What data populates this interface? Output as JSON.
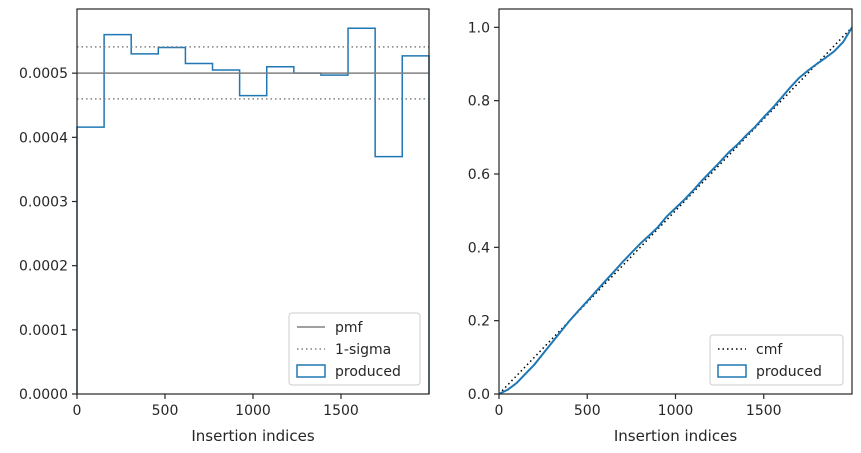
{
  "chart_data": [
    {
      "type": "histogram",
      "xlabel": "Insertion indices",
      "ylabel": "",
      "xlim": [
        0,
        2000
      ],
      "ylim": [
        0,
        0.0006
      ],
      "xticks": [
        0,
        500,
        1000,
        1500
      ],
      "yticks": [
        0,
        0.0001,
        0.0002,
        0.0003,
        0.0004,
        0.0005
      ],
      "ytick_labels": [
        "0.0000",
        "0.0001",
        "0.0002",
        "0.0003",
        "0.0004",
        "0.0005"
      ],
      "xtick_labels": [
        "0",
        "500",
        "1000",
        "1500"
      ],
      "grid": false,
      "legend_position": "lower right",
      "series": [
        {
          "name": "produced",
          "kind": "step",
          "color": "#1f77b4",
          "bin_edges": [
            0,
            154,
            308,
            462,
            616,
            770,
            924,
            1078,
            1232,
            1386,
            1540,
            1694,
            1848,
            2000
          ],
          "values": [
            0.000416,
            0.00056,
            0.00053,
            0.00054,
            0.000515,
            0.000505,
            0.000465,
            0.00051,
            0.0005,
            0.000497,
            0.00057,
            0.00037,
            0.000527
          ]
        },
        {
          "name": "pmf",
          "kind": "hline",
          "color": "#808080",
          "y": 0.0005
        },
        {
          "name": "1-sigma",
          "kind": "hline-dotted",
          "color": "#808080",
          "y": [
            0.000541,
            0.00046
          ]
        }
      ],
      "legend": [
        "pmf",
        "1-sigma",
        "produced"
      ]
    },
    {
      "type": "line",
      "xlabel": "Insertion indices",
      "ylabel": "",
      "xlim": [
        0,
        2000
      ],
      "ylim": [
        0,
        1.05
      ],
      "xticks": [
        0,
        500,
        1000,
        1500
      ],
      "xtick_labels": [
        "0",
        "500",
        "1000",
        "1500"
      ],
      "yticks": [
        0,
        0.2,
        0.4,
        0.6,
        0.8,
        1.0
      ],
      "ytick_labels": [
        "0.0",
        "0.2",
        "0.4",
        "0.6",
        "0.8",
        "1.0"
      ],
      "grid": false,
      "legend_position": "lower right",
      "series": [
        {
          "name": "cmf",
          "kind": "dotted-line",
          "color": "#000000",
          "x": [
            0,
            2000
          ],
          "y": [
            0,
            1
          ]
        },
        {
          "name": "produced",
          "kind": "step",
          "color": "#1f77b4",
          "x": [
            0,
            50,
            100,
            150,
            200,
            250,
            300,
            350,
            400,
            450,
            500,
            550,
            600,
            650,
            700,
            750,
            800,
            850,
            900,
            950,
            1000,
            1050,
            1100,
            1150,
            1200,
            1250,
            1300,
            1350,
            1400,
            1450,
            1500,
            1550,
            1600,
            1650,
            1700,
            1750,
            1800,
            1850,
            1900,
            1950,
            2000
          ],
          "y": [
            0,
            0.012,
            0.03,
            0.055,
            0.08,
            0.11,
            0.14,
            0.17,
            0.2,
            0.227,
            0.253,
            0.28,
            0.307,
            0.333,
            0.36,
            0.385,
            0.41,
            0.432,
            0.455,
            0.484,
            0.507,
            0.53,
            0.555,
            0.582,
            0.607,
            0.632,
            0.658,
            0.68,
            0.705,
            0.728,
            0.755,
            0.78,
            0.808,
            0.836,
            0.862,
            0.882,
            0.9,
            0.917,
            0.935,
            0.96,
            1.0
          ]
        }
      ],
      "legend": [
        "cmf",
        "produced"
      ]
    }
  ]
}
